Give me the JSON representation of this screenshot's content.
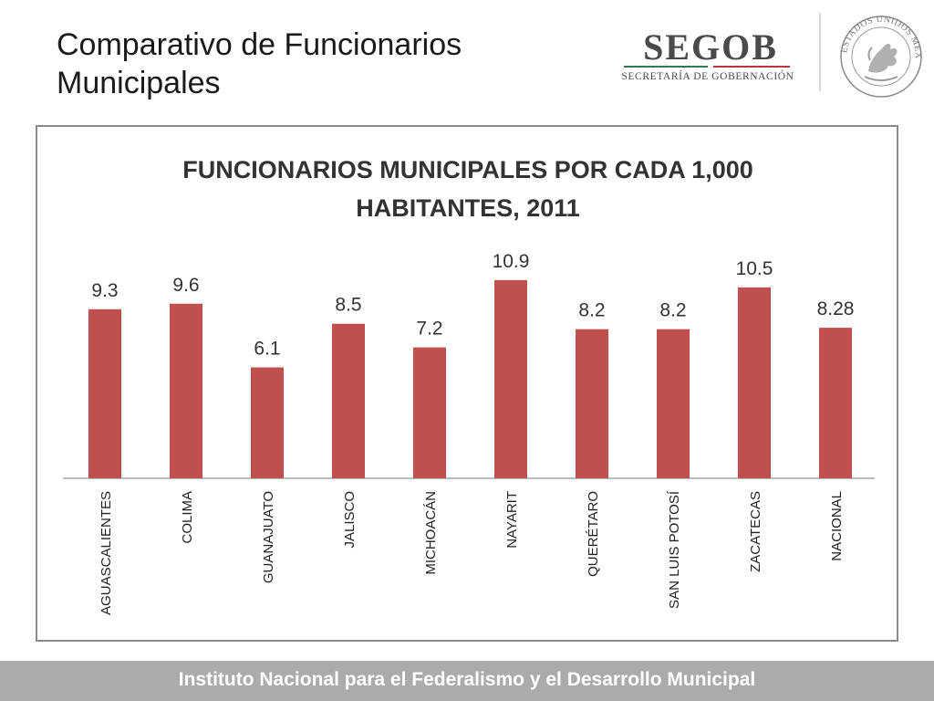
{
  "slide": {
    "title": "Comparativo de Funcionarios Municipales",
    "logo_word": "SEGOB",
    "logo_subtitle": "SECRETARÍA DE GOBERNACIÓN",
    "seal_text": "ESTADOS UNIDOS MEXICANOS",
    "footer": "Instituto Nacional para el Federalismo y el Desarrollo Municipal"
  },
  "colors": {
    "bar": "#c0504d",
    "footer_bg": "#ababab"
  },
  "chart_data": {
    "type": "bar",
    "title": "FUNCIONARIOS MUNICIPALES POR CADA 1,000 HABITANTES, 2011",
    "title_lines": [
      "FUNCIONARIOS MUNICIPALES POR CADA 1,000",
      "HABITANTES, 2011"
    ],
    "categories": [
      "AGUASCALIENTES",
      "COLIMA",
      "GUANAJUATO",
      "JALISCO",
      "MICHOACÁN",
      "NAYARIT",
      "QUERÉTARO",
      "SAN LUIS POTOSÍ",
      "ZACATECAS",
      "NACIONAL"
    ],
    "values": [
      9.3,
      9.6,
      6.1,
      8.5,
      7.2,
      10.9,
      8.2,
      8.2,
      10.5,
      8.28
    ],
    "labels": [
      "9.3",
      "9.6",
      "6.1",
      "8.5",
      "7.2",
      "10.9",
      "8.2",
      "8.2",
      "10.5",
      "8.28"
    ],
    "xlabel": "",
    "ylabel": "",
    "ylim": [
      0,
      12.3
    ],
    "grid": false,
    "legend": "none"
  }
}
